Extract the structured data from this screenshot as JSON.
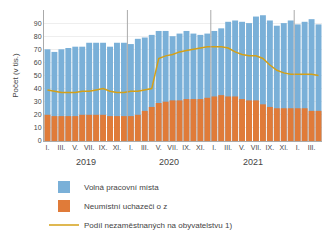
{
  "chart_data": {
    "type": "bar",
    "ylabel": "Počet (v tis.)",
    "categories": [
      "I.",
      null,
      "III.",
      null,
      "V.",
      null,
      "VII.",
      null,
      "IX.",
      null,
      "XI.",
      null,
      "I.",
      null,
      "III.",
      null,
      "V.",
      null,
      "VII.",
      null,
      "IX.",
      null,
      "XI.",
      null,
      "I.",
      null,
      "III.",
      null,
      "V.",
      null,
      "VII.",
      null,
      "IX.",
      null,
      "XI.",
      null,
      "I.",
      null,
      "III.",
      null
    ],
    "series": [
      {
        "name": "Volná pracovní místa",
        "type": "bar",
        "color": "#7ab0d8",
        "values": [
          70,
          68,
          70,
          71,
          72,
          72,
          75,
          75,
          75,
          72,
          75,
          75,
          74,
          78,
          79,
          81,
          84,
          84,
          80,
          82,
          84,
          82,
          81,
          82,
          84,
          86,
          91,
          92,
          91,
          90,
          95,
          96,
          92,
          88,
          90,
          92,
          89,
          91,
          93,
          89
        ]
      },
      {
        "name": "Neumístní uchazeči o z",
        "type": "bar",
        "color": "#e07b39",
        "values": [
          20,
          19,
          19,
          19,
          19,
          20,
          20,
          20,
          20,
          19,
          19,
          19,
          19,
          20,
          23,
          26,
          29,
          30,
          31,
          31,
          32,
          32,
          32,
          33,
          34,
          35,
          34,
          34,
          32,
          31,
          31,
          28,
          26,
          25,
          25,
          25,
          25,
          25,
          23,
          23
        ]
      },
      {
        "name": "Podíl nezaměstnaných na obyvatelstvu 1)",
        "type": "line",
        "color": "#d4a017",
        "values": [
          39,
          38,
          37,
          37,
          37,
          38,
          38,
          39,
          40,
          38,
          37,
          37,
          38,
          38,
          39,
          40,
          63,
          65,
          66,
          68,
          69,
          70,
          71,
          72,
          72,
          72,
          71,
          68,
          66,
          65,
          65,
          63,
          58,
          54,
          52,
          51,
          51,
          51,
          51,
          50
        ]
      }
    ],
    "ylim": [
      0,
      100
    ],
    "yticks": [
      0,
      10,
      20,
      30,
      40,
      50,
      60,
      70,
      80,
      90
    ],
    "grid": true,
    "legend": "lower left",
    "annotations": [
      "2019",
      "2020",
      "2021"
    ]
  }
}
